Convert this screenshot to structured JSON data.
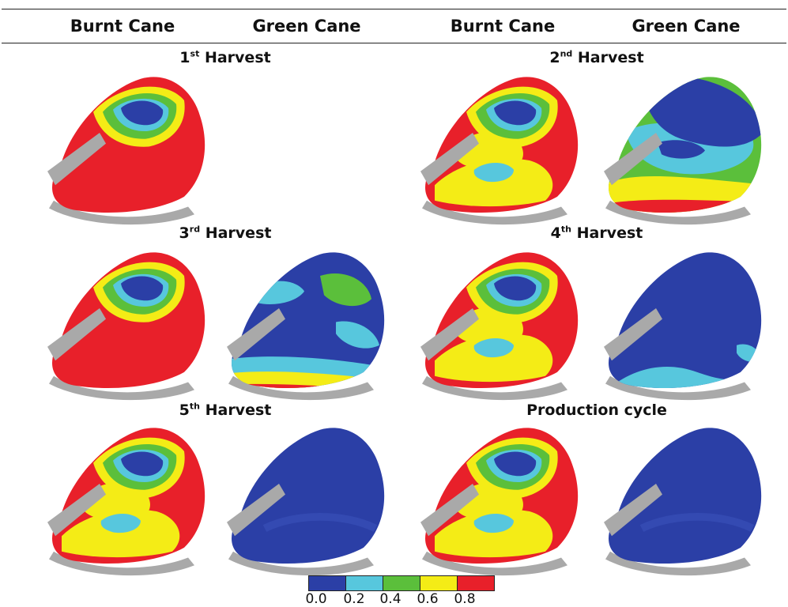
{
  "headers": [
    "Burnt Cane",
    "Green Cane",
    "Burnt Cane",
    "Green Cane"
  ],
  "panels": [
    {
      "num": "1",
      "sup": "st",
      "word": "Harvest"
    },
    {
      "num": "2",
      "sup": "nd",
      "word": "Harvest"
    },
    {
      "num": "3",
      "sup": "rd",
      "word": "Harvest"
    },
    {
      "num": "4",
      "sup": "th",
      "word": "Harvest"
    },
    {
      "num": "5",
      "sup": "th",
      "word": "Harvest"
    },
    {
      "num": "",
      "sup": "",
      "word": "Production cycle"
    }
  ],
  "legend": {
    "colors": [
      "#2b3fa6",
      "#57c7dd",
      "#5bbf3b",
      "#f4ec16",
      "#e8202a"
    ],
    "ticks": [
      "0.0",
      "0.2",
      "0.4",
      "0.6",
      "0.8"
    ]
  },
  "palette": {
    "blue": "#2b3fa6",
    "cyan": "#57c7dd",
    "green": "#5bbf3b",
    "yellow": "#f4ec16",
    "red": "#e8202a",
    "gray": "#a9a9a9"
  }
}
